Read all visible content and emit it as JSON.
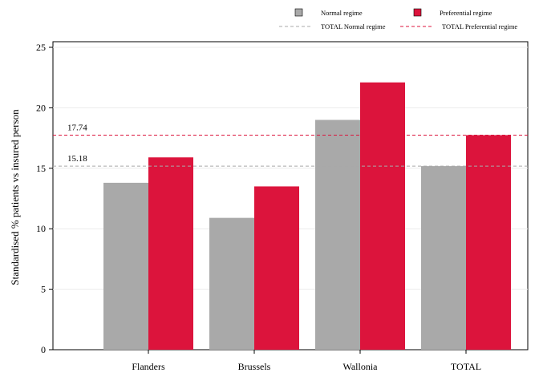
{
  "chart_data": {
    "type": "bar",
    "title": "",
    "xlabel": "",
    "ylabel": "Standardised % patients vs insured person",
    "categories": [
      "Flanders",
      "Brussels",
      "Wallonia",
      "TOTAL"
    ],
    "series": [
      {
        "name": "Normal regime",
        "color": "#a9a9a9",
        "values": [
          13.8,
          10.9,
          19.0,
          15.18
        ]
      },
      {
        "name": "Preferential regime",
        "color": "#dc143c",
        "values": [
          15.9,
          13.5,
          22.1,
          17.74
        ]
      }
    ],
    "reference_lines": [
      {
        "name": "TOTAL Normal regime",
        "value": 15.18,
        "label": "15.18",
        "color": "#a9a9a9",
        "style": "dashed"
      },
      {
        "name": "TOTAL Preferential regime",
        "value": 17.74,
        "label": "17.74",
        "color": "#dc143c",
        "style": "dashed"
      }
    ],
    "ylim": [
      0,
      25
    ],
    "yticks": [
      0,
      5,
      10,
      15,
      20,
      25
    ],
    "grid": true,
    "legend_position": "top-right"
  }
}
